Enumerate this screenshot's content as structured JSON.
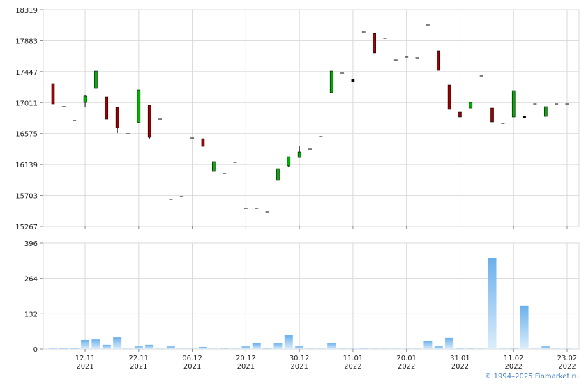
{
  "chart_data": [
    {
      "type": "candlestick",
      "open": [
        17279,
        16955,
        16759,
        17014,
        17210,
        17092,
        16945,
        16572,
        16729,
        16975,
        16778,
        15650,
        15689,
        16513,
        16503,
        16042,
        16013,
        16170,
        15522,
        15522,
        15473,
        15915,
        16121,
        16238,
        16356,
        16533,
        17151,
        17426,
        17308,
        18005,
        17985,
        17917,
        17612,
        17652,
        17642,
        18103,
        17740,
        17259,
        16876,
        16935,
        17387,
        16935,
        16719,
        16808,
        16817,
        16994,
        16817,
        16994,
        16994
      ],
      "high": [
        17279,
        16955,
        16759,
        17122,
        17455,
        17092,
        16945,
        16572,
        17190,
        16975,
        16778,
        15650,
        15689,
        16513,
        16503,
        16180,
        16013,
        16170,
        15522,
        15522,
        15473,
        16081,
        16248,
        16395,
        16356,
        16533,
        17455,
        17426,
        17337,
        18005,
        17985,
        17917,
        17612,
        17652,
        17642,
        18103,
        17740,
        17259,
        16876,
        17014,
        17387,
        16935,
        16719,
        17180,
        16817,
        16994,
        16955,
        16994,
        16994
      ],
      "low": [
        16994,
        16955,
        16759,
        16955,
        17210,
        16778,
        16582,
        16572,
        16729,
        16503,
        16778,
        15650,
        15689,
        16513,
        16395,
        16042,
        16013,
        16170,
        15522,
        15522,
        15473,
        15915,
        16111,
        16238,
        16356,
        16533,
        17151,
        17426,
        17308,
        18005,
        17711,
        17917,
        17612,
        17652,
        17642,
        18103,
        17465,
        16916,
        16808,
        16935,
        17387,
        16739,
        16719,
        16808,
        16798,
        16994,
        16817,
        16994,
        16994
      ],
      "close": [
        16994,
        16955,
        16759,
        17102,
        17455,
        16778,
        16660,
        16572,
        17190,
        16523,
        16778,
        15650,
        15689,
        16513,
        16395,
        16180,
        16013,
        16170,
        15522,
        15522,
        15473,
        16081,
        16248,
        16317,
        16356,
        16533,
        17455,
        17426,
        17337,
        18005,
        17711,
        17917,
        17612,
        17652,
        17642,
        18103,
        17465,
        16916,
        16808,
        17014,
        17387,
        16739,
        16719,
        17180,
        16798,
        16994,
        16955,
        16994,
        16994
      ],
      "up_color": "#00b000",
      "down_color": "#a00000",
      "ylim": [
        15267,
        18319
      ],
      "yticks": [
        15267,
        15703,
        16139,
        16575,
        17011,
        17447,
        17883,
        18319
      ],
      "grid": true
    },
    {
      "type": "bar",
      "categories": [
        null,
        null,
        null,
        "12.11\n2021",
        null,
        null,
        null,
        null,
        "22.11\n2021",
        null,
        null,
        null,
        null,
        "06.12\n2021",
        null,
        null,
        null,
        null,
        "20.12\n2021",
        null,
        null,
        null,
        null,
        "30.12\n2021",
        null,
        null,
        null,
        null,
        "11.01\n2022",
        null,
        null,
        null,
        null,
        "20.01\n2022",
        null,
        null,
        null,
        null,
        "31.01\n2022",
        null,
        null,
        null,
        null,
        "11.02\n2022",
        null,
        null,
        null,
        null,
        "23.02\n2022"
      ],
      "values": [
        5,
        2,
        2,
        34,
        36,
        16,
        44,
        1,
        10,
        16,
        1,
        10,
        1,
        1,
        8,
        1,
        5,
        1,
        10,
        21,
        5,
        23,
        52,
        10,
        1,
        1,
        23,
        1,
        1,
        5,
        1,
        1,
        1,
        1,
        1,
        31,
        10,
        42,
        5,
        5,
        1,
        339,
        1,
        5,
        162,
        1,
        10,
        1,
        1
      ],
      "color": "#6ab0ec",
      "ylim": [
        0,
        396
      ],
      "yticks": [
        0,
        132,
        264,
        396
      ],
      "grid": true
    }
  ],
  "footer": "© 1994–2025 Finmarket.ru"
}
